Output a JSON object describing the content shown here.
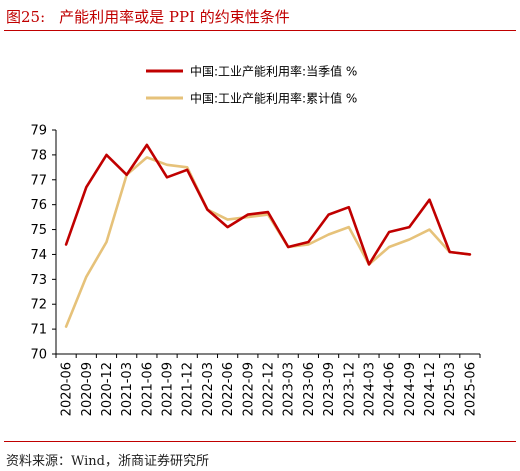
{
  "figure": {
    "number": "图25:",
    "title": "产能利用率或是 PPI 的约束性条件"
  },
  "source": "资料来源：Wind，浙商证券研究所",
  "colors": {
    "series1": "#c00000",
    "series2": "#e6c27a",
    "accent": "#c00000"
  },
  "chart_data": {
    "type": "line",
    "title": "",
    "xlabel": "",
    "ylabel": "",
    "ylim": [
      70,
      79
    ],
    "yticks": [
      70,
      71,
      72,
      73,
      74,
      75,
      76,
      77,
      78,
      79
    ],
    "grid": false,
    "legend_position": "top",
    "x": [
      "2020-06",
      "2020-09",
      "2020-12",
      "2021-03",
      "2021-06",
      "2021-09",
      "2021-12",
      "2022-03",
      "2022-06",
      "2022-09",
      "2022-12",
      "2023-03",
      "2023-06",
      "2023-09",
      "2023-12",
      "2024-03",
      "2024-06",
      "2024-09",
      "2024-12",
      "2025-03",
      "2025-06"
    ],
    "series": [
      {
        "name": "中国:工业产能利用率:当季值 %",
        "values": [
          74.4,
          76.7,
          78.0,
          77.2,
          78.4,
          77.1,
          77.4,
          75.8,
          75.1,
          75.6,
          75.7,
          74.3,
          74.5,
          75.6,
          75.9,
          73.6,
          74.9,
          75.1,
          76.2,
          74.1,
          74.0
        ]
      },
      {
        "name": "中国:工业产能利用率:累计值 %",
        "values": [
          71.1,
          73.1,
          74.5,
          77.2,
          77.9,
          77.6,
          77.5,
          75.8,
          75.4,
          75.5,
          75.6,
          74.3,
          74.4,
          74.8,
          75.1,
          73.6,
          74.3,
          74.6,
          75.0,
          74.1,
          74.0
        ]
      }
    ]
  }
}
